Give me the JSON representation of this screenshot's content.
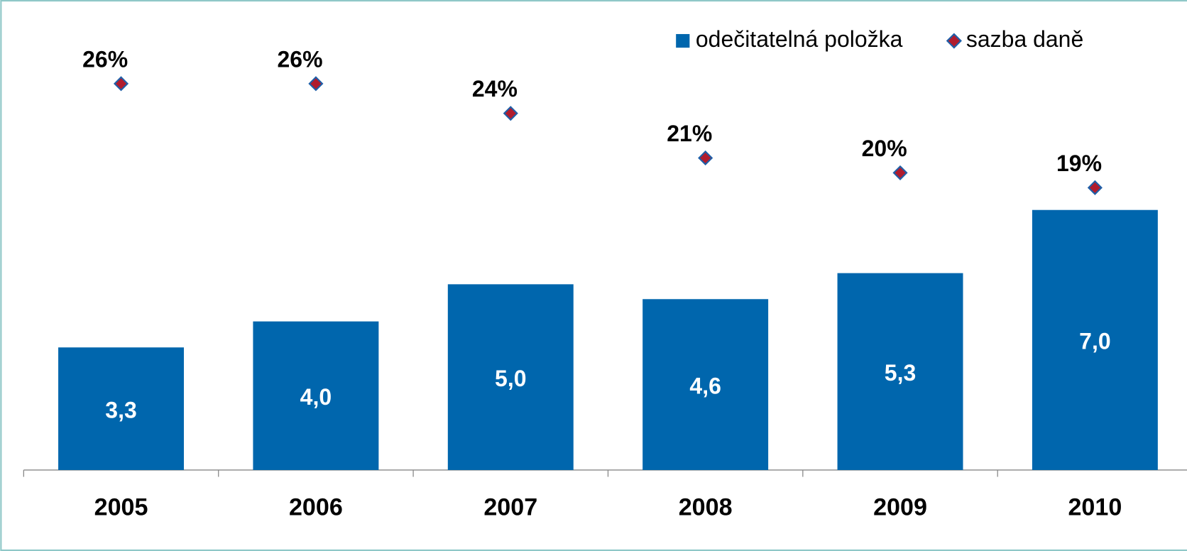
{
  "chart_data": {
    "type": "bar",
    "categories": [
      "2005",
      "2006",
      "2007",
      "2008",
      "2009",
      "2010"
    ],
    "series": [
      {
        "name": "odečitatelná položka",
        "type": "bar",
        "color": "#0066ad",
        "values": [
          3.3,
          4.0,
          5.0,
          4.6,
          5.3,
          7.0
        ],
        "value_labels": [
          "3,3",
          "4,0",
          "5,0",
          "4,6",
          "5,3",
          "7,0"
        ]
      },
      {
        "name": "sazba daně",
        "type": "scatter",
        "marker": "diamond",
        "color": "#b01c2e",
        "axis": "y2",
        "values": [
          26,
          26,
          24,
          21,
          20,
          19
        ],
        "value_labels": [
          "26%",
          "26%",
          "24%",
          "21%",
          "20%",
          "19%"
        ]
      }
    ],
    "ylim": [
      0,
      12
    ],
    "y2lim": [
      0,
      30
    ],
    "grid": false,
    "legend": "top right"
  }
}
